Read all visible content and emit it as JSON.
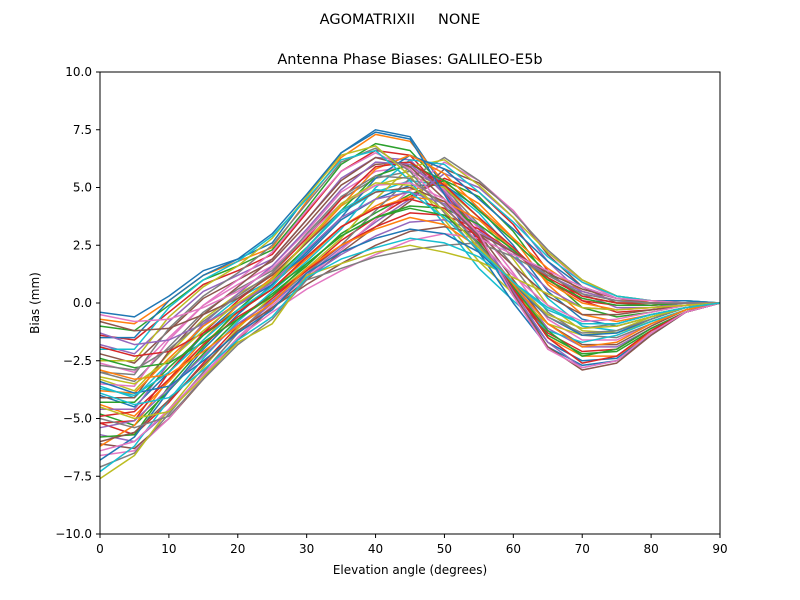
{
  "figure": {
    "suptitle": "AGOMATRIXII     NONE"
  },
  "chart_data": {
    "type": "line",
    "title": "Antenna Phase Biases: GALILEO-E5b",
    "xlabel": "Elevation angle (degrees)",
    "ylabel": "Bias (mm)",
    "xlim": [
      0,
      90
    ],
    "ylim": [
      -10,
      10
    ],
    "xticks": [
      0,
      10,
      20,
      30,
      40,
      50,
      60,
      70,
      80,
      90
    ],
    "yticks": [
      -10.0,
      -7.5,
      -5.0,
      -2.5,
      0.0,
      2.5,
      5.0,
      7.5,
      10.0
    ],
    "xtick_labels": [
      "0",
      "10",
      "20",
      "30",
      "40",
      "50",
      "60",
      "70",
      "80",
      "90"
    ],
    "ytick_labels": [
      "−10.0",
      "−7.5",
      "−5.0",
      "−2.5",
      "0.0",
      "2.5",
      "5.0",
      "7.5",
      "10.0"
    ],
    "grid": false,
    "legend": "none",
    "x": [
      0,
      5,
      10,
      15,
      20,
      25,
      30,
      35,
      40,
      45,
      50,
      55,
      60,
      65,
      70,
      75,
      80,
      85,
      90
    ],
    "colors": [
      "#1f77b4",
      "#ff7f0e",
      "#2ca02c",
      "#d62728",
      "#9467bd",
      "#8c564b",
      "#e377c2",
      "#7f7f7f",
      "#bcbd22",
      "#17becf"
    ],
    "series": [
      {
        "values": [
          -0.4,
          -0.6,
          0.3,
          1.4,
          1.9,
          2.6,
          4.6,
          6.5,
          7.5,
          7.2,
          5.0,
          2.6,
          0.3,
          -1.7,
          -2.5,
          -2.4,
          -1.3,
          -0.4,
          0.0
        ]
      },
      {
        "values": [
          -0.7,
          -0.9,
          0.1,
          1.2,
          1.8,
          2.4,
          4.4,
          6.3,
          7.3,
          7.0,
          5.2,
          2.9,
          0.6,
          -1.5,
          -2.3,
          -2.3,
          -1.3,
          -0.4,
          0.0
        ]
      },
      {
        "values": [
          -1.0,
          -1.2,
          -0.1,
          1.0,
          1.6,
          2.3,
          4.1,
          6.0,
          6.9,
          6.6,
          5.0,
          2.8,
          0.6,
          -1.4,
          -2.2,
          -2.1,
          -1.2,
          -0.4,
          0.0
        ]
      },
      {
        "values": [
          -1.4,
          -1.6,
          -0.4,
          0.8,
          1.4,
          2.1,
          3.9,
          5.7,
          6.6,
          6.4,
          4.8,
          2.7,
          0.6,
          -1.3,
          -2.1,
          -2.0,
          -1.1,
          -0.4,
          0.0
        ]
      },
      {
        "values": [
          -1.8,
          -2.2,
          -0.8,
          0.5,
          1.2,
          1.9,
          3.6,
          5.4,
          6.3,
          6.2,
          4.7,
          2.8,
          0.8,
          -1.1,
          -1.9,
          -1.9,
          -1.1,
          -0.4,
          0.0
        ]
      },
      {
        "values": [
          -2.2,
          -2.6,
          -1.2,
          0.2,
          1.0,
          1.8,
          3.4,
          5.1,
          6.0,
          6.1,
          4.9,
          3.0,
          1.0,
          -0.9,
          -1.8,
          -1.8,
          -1.0,
          -0.3,
          0.0
        ]
      },
      {
        "values": [
          -2.6,
          -3.0,
          -1.5,
          -0.1,
          0.8,
          1.6,
          3.1,
          4.8,
          5.7,
          5.9,
          4.9,
          3.2,
          1.3,
          -0.7,
          -1.6,
          -1.6,
          -0.9,
          -0.3,
          0.0
        ]
      },
      {
        "values": [
          -3.0,
          -3.4,
          -1.9,
          -0.4,
          0.6,
          1.4,
          2.9,
          4.5,
          5.4,
          5.7,
          5.0,
          3.4,
          1.6,
          -0.4,
          -1.4,
          -1.5,
          -0.9,
          -0.3,
          0.0
        ]
      },
      {
        "values": [
          -3.3,
          -3.8,
          -2.2,
          -0.7,
          0.4,
          1.2,
          2.6,
          4.2,
          5.1,
          5.5,
          5.0,
          3.7,
          1.9,
          -0.1,
          -1.2,
          -1.3,
          -0.8,
          -0.3,
          0.0
        ]
      },
      {
        "values": [
          -3.6,
          -4.1,
          -2.6,
          -1.0,
          0.2,
          1.0,
          2.4,
          3.9,
          4.8,
          5.3,
          5.1,
          3.9,
          2.2,
          0.2,
          -1.0,
          -1.2,
          -0.7,
          -0.2,
          0.0
        ]
      },
      {
        "values": [
          -4.0,
          -4.5,
          -3.0,
          -1.4,
          -0.1,
          0.8,
          2.1,
          3.6,
          4.5,
          5.1,
          5.1,
          4.1,
          2.5,
          0.5,
          -0.7,
          -1.0,
          -0.6,
          -0.2,
          0.0
        ]
      },
      {
        "values": [
          -4.4,
          -4.9,
          -3.4,
          -1.8,
          -0.4,
          0.6,
          1.9,
          3.3,
          4.2,
          4.9,
          5.2,
          4.3,
          2.8,
          0.8,
          -0.5,
          -0.8,
          -0.5,
          -0.2,
          0.0
        ]
      },
      {
        "values": [
          -4.8,
          -5.3,
          -3.8,
          -2.2,
          -0.7,
          0.4,
          1.6,
          3.0,
          3.9,
          4.7,
          5.3,
          4.6,
          3.1,
          1.1,
          -0.2,
          -0.6,
          -0.4,
          -0.1,
          0.0
        ]
      },
      {
        "values": [
          -5.2,
          -5.7,
          -4.3,
          -2.6,
          -1.0,
          0.2,
          1.4,
          2.7,
          3.7,
          4.6,
          5.4,
          4.8,
          3.4,
          1.4,
          0.1,
          -0.4,
          -0.3,
          -0.1,
          0.0
        ]
      },
      {
        "values": [
          -5.7,
          -6.0,
          -4.7,
          -3.0,
          -1.3,
          0.0,
          1.2,
          2.4,
          3.5,
          4.5,
          5.6,
          5.0,
          3.7,
          1.8,
          0.4,
          -0.2,
          -0.2,
          -0.1,
          0.0
        ]
      },
      {
        "values": [
          -6.1,
          -6.3,
          -5.0,
          -3.3,
          -1.6,
          -0.2,
          1.0,
          2.2,
          3.3,
          4.4,
          5.8,
          5.2,
          4.0,
          2.1,
          0.7,
          0.0,
          -0.1,
          0.0,
          0.0
        ]
      },
      {
        "values": [
          -6.6,
          -6.4,
          -5.0,
          -3.2,
          -1.5,
          -0.1,
          1.1,
          2.3,
          3.6,
          4.9,
          6.1,
          5.3,
          4.0,
          2.2,
          0.9,
          0.2,
          0.0,
          0.0,
          0.0
        ]
      },
      {
        "values": [
          -7.1,
          -6.5,
          -4.8,
          -3.0,
          -1.3,
          0.1,
          1.3,
          2.5,
          4.0,
          5.4,
          6.3,
          5.3,
          3.9,
          2.3,
          1.0,
          0.3,
          0.1,
          0.1,
          0.0
        ]
      },
      {
        "values": [
          -7.6,
          -6.6,
          -4.6,
          -2.8,
          -1.1,
          0.3,
          1.5,
          2.8,
          4.5,
          5.9,
          6.2,
          5.1,
          3.7,
          2.2,
          1.0,
          0.3,
          0.1,
          0.1,
          0.0
        ]
      },
      {
        "values": [
          -7.3,
          -6.2,
          -4.2,
          -2.4,
          -0.8,
          0.5,
          1.8,
          3.2,
          5.0,
          6.2,
          6.0,
          4.8,
          3.5,
          2.0,
          0.9,
          0.3,
          0.1,
          0.1,
          0.0
        ]
      },
      {
        "values": [
          -6.8,
          -5.8,
          -3.8,
          -2.0,
          -0.5,
          0.8,
          2.2,
          3.7,
          5.4,
          6.4,
          5.8,
          4.5,
          3.2,
          1.8,
          0.7,
          0.2,
          0.1,
          0.1,
          0.0
        ]
      },
      {
        "values": [
          -6.2,
          -5.3,
          -3.3,
          -1.6,
          -0.1,
          1.1,
          2.6,
          4.2,
          5.8,
          6.4,
          5.6,
          4.1,
          2.8,
          1.5,
          0.5,
          0.1,
          0.1,
          0.0,
          0.0
        ]
      },
      {
        "values": [
          -5.8,
          -5.7,
          -3.6,
          -1.9,
          -0.3,
          1.0,
          2.4,
          4.0,
          5.5,
          6.0,
          5.3,
          4.0,
          2.7,
          1.3,
          0.3,
          0.0,
          0.0,
          0.0,
          0.0
        ]
      },
      {
        "values": [
          -5.2,
          -5.1,
          -3.0,
          -1.3,
          0.1,
          1.3,
          2.8,
          4.5,
          5.9,
          6.1,
          5.1,
          3.7,
          2.4,
          1.0,
          0.1,
          -0.1,
          -0.1,
          0.0,
          0.0
        ]
      },
      {
        "values": [
          -4.6,
          -4.6,
          -2.6,
          -0.9,
          0.4,
          1.6,
          3.2,
          4.9,
          6.1,
          6.0,
          4.8,
          3.3,
          2.0,
          0.6,
          -0.2,
          -0.3,
          -0.2,
          0.0,
          0.0
        ]
      },
      {
        "values": [
          -4.1,
          -4.1,
          -2.1,
          -0.5,
          0.7,
          1.9,
          3.6,
          5.3,
          6.3,
          5.9,
          4.5,
          3.0,
          1.6,
          0.3,
          -0.5,
          -0.5,
          -0.3,
          -0.1,
          0.0
        ]
      },
      {
        "values": [
          -3.5,
          -3.6,
          -1.6,
          -0.1,
          1.0,
          2.2,
          4.0,
          5.7,
          6.5,
          5.8,
          4.2,
          2.6,
          1.2,
          -0.1,
          -0.8,
          -0.7,
          -0.4,
          -0.1,
          0.0
        ]
      },
      {
        "values": [
          -3.0,
          -3.1,
          -1.1,
          0.3,
          1.3,
          2.5,
          4.3,
          6.1,
          6.7,
          5.7,
          3.9,
          2.2,
          0.8,
          -0.5,
          -1.1,
          -0.9,
          -0.5,
          -0.2,
          0.0
        ]
      },
      {
        "values": [
          -2.5,
          -2.5,
          -0.6,
          0.7,
          1.6,
          2.8,
          4.6,
          6.4,
          6.8,
          5.5,
          3.6,
          1.8,
          0.4,
          -0.9,
          -1.4,
          -1.2,
          -0.6,
          -0.2,
          0.0
        ]
      },
      {
        "values": [
          -2.0,
          -2.0,
          -0.2,
          1.0,
          1.8,
          2.9,
          4.5,
          6.2,
          6.6,
          5.3,
          3.4,
          1.5,
          0.1,
          -1.2,
          -1.7,
          -1.4,
          -0.8,
          -0.3,
          0.0
        ]
      },
      {
        "values": [
          -1.5,
          -1.5,
          0.1,
          1.2,
          1.9,
          3.0,
          4.7,
          6.5,
          7.4,
          7.1,
          4.7,
          2.2,
          0.0,
          -1.9,
          -2.7,
          -2.5,
          -1.4,
          -0.4,
          0.0
        ]
      },
      {
        "values": [
          -3.8,
          -3.9,
          -2.4,
          -1.0,
          0.0,
          0.9,
          2.0,
          3.3,
          4.1,
          4.6,
          4.4,
          3.6,
          2.3,
          0.9,
          0.0,
          -0.3,
          -0.2,
          -0.1,
          0.0
        ]
      },
      {
        "values": [
          -4.3,
          -4.3,
          -2.8,
          -1.4,
          -0.3,
          0.6,
          1.7,
          2.9,
          3.7,
          4.2,
          4.1,
          3.4,
          2.3,
          1.0,
          0.2,
          -0.1,
          -0.1,
          0.0,
          0.0
        ]
      },
      {
        "values": [
          -4.9,
          -4.7,
          -3.3,
          -1.8,
          -0.6,
          0.3,
          1.4,
          2.5,
          3.3,
          3.9,
          3.8,
          3.2,
          2.2,
          1.1,
          0.3,
          0.0,
          0.0,
          0.0,
          0.0
        ]
      },
      {
        "values": [
          -5.4,
          -5.1,
          -3.7,
          -2.3,
          -0.9,
          0.1,
          1.1,
          2.1,
          2.9,
          3.5,
          3.6,
          3.1,
          2.2,
          1.2,
          0.5,
          0.1,
          0.0,
          0.0,
          0.0
        ]
      },
      {
        "values": [
          -6.0,
          -5.6,
          -4.2,
          -2.7,
          -1.2,
          -0.2,
          0.8,
          1.7,
          2.5,
          3.1,
          3.3,
          3.0,
          2.2,
          1.3,
          0.6,
          0.2,
          0.0,
          0.0,
          0.0
        ]
      },
      {
        "values": [
          -6.4,
          -6.0,
          -4.6,
          -3.1,
          -1.5,
          -0.4,
          0.6,
          1.4,
          2.1,
          2.7,
          3.0,
          2.8,
          2.1,
          1.4,
          0.7,
          0.2,
          0.1,
          0.0,
          0.0
        ]
      },
      {
        "values": [
          -5.0,
          -5.4,
          -4.9,
          -3.3,
          -1.8,
          -0.7,
          1.0,
          1.5,
          2.0,
          2.3,
          2.5,
          2.6,
          2.0,
          1.2,
          0.4,
          0.1,
          0.0,
          0.0,
          0.0
        ]
      },
      {
        "values": [
          -4.5,
          -5.0,
          -4.7,
          -3.2,
          -1.7,
          -0.9,
          1.2,
          1.7,
          2.2,
          2.5,
          2.2,
          1.8,
          1.1,
          0.4,
          -0.2,
          -0.3,
          -0.2,
          -0.1,
          0.0
        ]
      },
      {
        "values": [
          -3.9,
          -4.4,
          -4.1,
          -2.9,
          -1.6,
          -0.6,
          1.1,
          1.9,
          2.4,
          2.8,
          2.6,
          2.0,
          0.9,
          -0.2,
          -0.9,
          -0.9,
          -0.5,
          -0.2,
          0.0
        ]
      },
      {
        "values": [
          -3.4,
          -3.9,
          -3.6,
          -2.5,
          -1.3,
          -0.3,
          1.3,
          2.2,
          2.8,
          3.2,
          3.0,
          2.2,
          0.8,
          -0.6,
          -1.4,
          -1.3,
          -0.7,
          -0.2,
          0.0
        ]
      },
      {
        "values": [
          -2.9,
          -3.3,
          -3.1,
          -2.1,
          -1.0,
          0.0,
          1.5,
          2.5,
          3.2,
          3.7,
          3.4,
          2.4,
          0.8,
          -0.9,
          -1.9,
          -1.7,
          -0.9,
          -0.3,
          0.0
        ]
      },
      {
        "values": [
          -2.4,
          -2.8,
          -2.6,
          -1.7,
          -0.7,
          0.3,
          1.7,
          2.9,
          3.7,
          4.1,
          3.8,
          2.6,
          0.7,
          -1.2,
          -2.3,
          -2.0,
          -1.1,
          -0.4,
          0.0
        ]
      },
      {
        "values": [
          -1.9,
          -2.3,
          -2.1,
          -1.3,
          -0.4,
          0.6,
          2.0,
          3.3,
          4.1,
          4.5,
          4.1,
          2.8,
          0.6,
          -1.5,
          -2.6,
          -2.3,
          -1.2,
          -0.4,
          0.0
        ]
      },
      {
        "values": [
          -1.3,
          -1.8,
          -1.6,
          -0.9,
          -0.1,
          0.9,
          2.3,
          3.7,
          4.5,
          4.8,
          4.3,
          2.9,
          0.5,
          -1.7,
          -2.8,
          -2.5,
          -1.3,
          -0.4,
          0.0
        ]
      },
      {
        "values": [
          -0.8,
          -1.2,
          -1.1,
          -0.5,
          0.2,
          1.2,
          2.6,
          4.0,
          4.8,
          5.0,
          4.4,
          2.9,
          0.4,
          -1.9,
          -2.9,
          -2.6,
          -1.4,
          -0.4,
          0.0
        ]
      },
      {
        "values": [
          -0.5,
          -0.8,
          -0.7,
          -0.2,
          0.5,
          1.5,
          2.9,
          4.3,
          5.1,
          5.2,
          4.5,
          3.0,
          0.3,
          -2.0,
          -2.8,
          -2.5,
          -1.3,
          -0.4,
          0.0
        ]
      },
      {
        "values": [
          -2.7,
          -2.9,
          -2.0,
          -0.8,
          0.3,
          1.3,
          3.0,
          4.6,
          5.5,
          5.4,
          4.2,
          2.5,
          0.9,
          -0.6,
          -1.3,
          -1.2,
          -0.7,
          -0.2,
          0.0
        ]
      },
      {
        "values": [
          -3.2,
          -3.5,
          -2.5,
          -1.2,
          0.0,
          1.0,
          2.7,
          4.3,
          5.2,
          5.1,
          4.0,
          2.4,
          0.9,
          -0.5,
          -1.1,
          -1.0,
          -0.6,
          -0.2,
          0.0
        ]
      },
      {
        "values": [
          -3.7,
          -4.0,
          -3.0,
          -1.6,
          -0.3,
          0.7,
          2.4,
          4.0,
          4.9,
          4.8,
          3.7,
          2.3,
          0.9,
          -0.3,
          -0.9,
          -0.9,
          -0.5,
          -0.2,
          0.0
        ]
      }
    ]
  }
}
